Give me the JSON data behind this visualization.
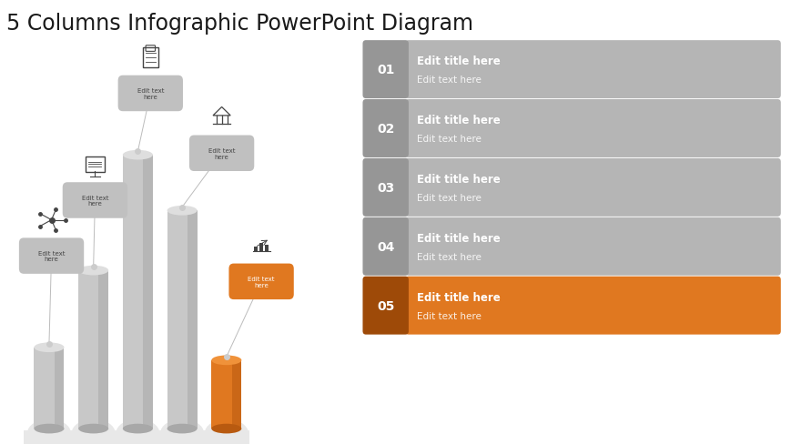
{
  "title": "5 Columns Infographic PowerPoint Diagram",
  "title_fontsize": 17,
  "title_color": "#1a1a1a",
  "background_color": "#ffffff",
  "bar_heights": [
    0.95,
    1.85,
    3.2,
    2.55,
    0.8
  ],
  "bar_colors": [
    "#c8c8c8",
    "#c8c8c8",
    "#c8c8c8",
    "#c8c8c8",
    "#e07820"
  ],
  "bar_dark_colors": [
    "#a8a8a8",
    "#a8a8a8",
    "#a8a8a8",
    "#a8a8a8",
    "#b85a10"
  ],
  "bar_top_colors": [
    "#dedede",
    "#dedede",
    "#dedede",
    "#dedede",
    "#f0923a"
  ],
  "bar_x_positions": [
    0.62,
    1.18,
    1.74,
    2.3,
    2.86
  ],
  "bar_width": 0.38,
  "list_items": [
    {
      "num": "01",
      "title": "Edit title here",
      "text": "Edit text here",
      "active": false
    },
    {
      "num": "02",
      "title": "Edit title here",
      "text": "Edit text here",
      "active": false
    },
    {
      "num": "03",
      "title": "Edit title here",
      "text": "Edit text here",
      "active": false
    },
    {
      "num": "04",
      "title": "Edit title here",
      "text": "Edit text here",
      "active": false
    },
    {
      "num": "05",
      "title": "Edit title here",
      "text": "Edit text here",
      "active": true
    }
  ],
  "inactive_color": "#b5b5b5",
  "inactive_num_color": "#969696",
  "active_color": "#e07820",
  "active_num_color": "#9e4a08",
  "label_pill_color": "#c0c0c0",
  "label_text": "Edit text\nhere",
  "connector_color": "#b0b0b0",
  "icon_color": "#444444",
  "orange_pill_color": "#e07820",
  "base_color": "#e8e8e8"
}
